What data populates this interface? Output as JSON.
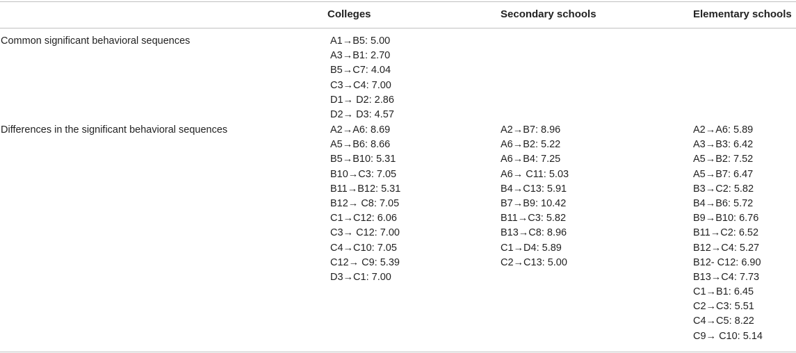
{
  "table": {
    "headers": [
      "",
      "Colleges",
      "Secondary schools",
      "Elementary schools"
    ],
    "rows": [
      {
        "label": "Common significant behavioral sequences",
        "colleges": [
          "A1→B5: 5.00",
          "A3→B1: 2.70",
          "B5→C7: 4.04",
          "C3→C4: 7.00",
          "D1→ D2: 2.86",
          "D2→ D3: 4.57"
        ],
        "secondary": [],
        "elementary": []
      },
      {
        "label": "Differences in the significant behavioral sequences",
        "colleges": [
          "A2→A6: 8.69",
          "A5→B6: 8.66",
          "B5→B10: 5.31",
          "B10→C3: 7.05",
          "B11→B12: 5.31",
          "B12→ C8: 7.05",
          "C1→C12: 6.06",
          "C3→ C12: 7.00",
          "C4→C10: 7.05",
          "C12→ C9: 5.39",
          "D3→C1: 7.00"
        ],
        "secondary": [
          "A2→B7: 8.96",
          "A6→B2: 5.22",
          "A6→B4: 7.25",
          "A6→ C11: 5.03",
          "B4→C13: 5.91",
          "B7→B9: 10.42",
          "B11→C3: 5.82",
          "B13→C8: 8.96",
          "C1→D4: 5.89",
          "C2→C13: 5.00"
        ],
        "elementary": [
          "A2→A6: 5.89",
          "A3→B3: 6.42",
          "A5→B2: 7.52",
          "A5→B7: 6.47",
          "B3→C2: 5.82",
          "B4→B6: 5.72",
          "B9→B10: 6.76",
          "B11→C2: 6.52",
          "B12→C4: 5.27",
          "B12- C12: 6.90",
          "B13→C4: 7.73",
          "C1→B1: 6.45",
          "C2→C3: 5.51",
          "C4→C5: 8.22",
          "C9→ C10: 5.14"
        ]
      }
    ]
  }
}
